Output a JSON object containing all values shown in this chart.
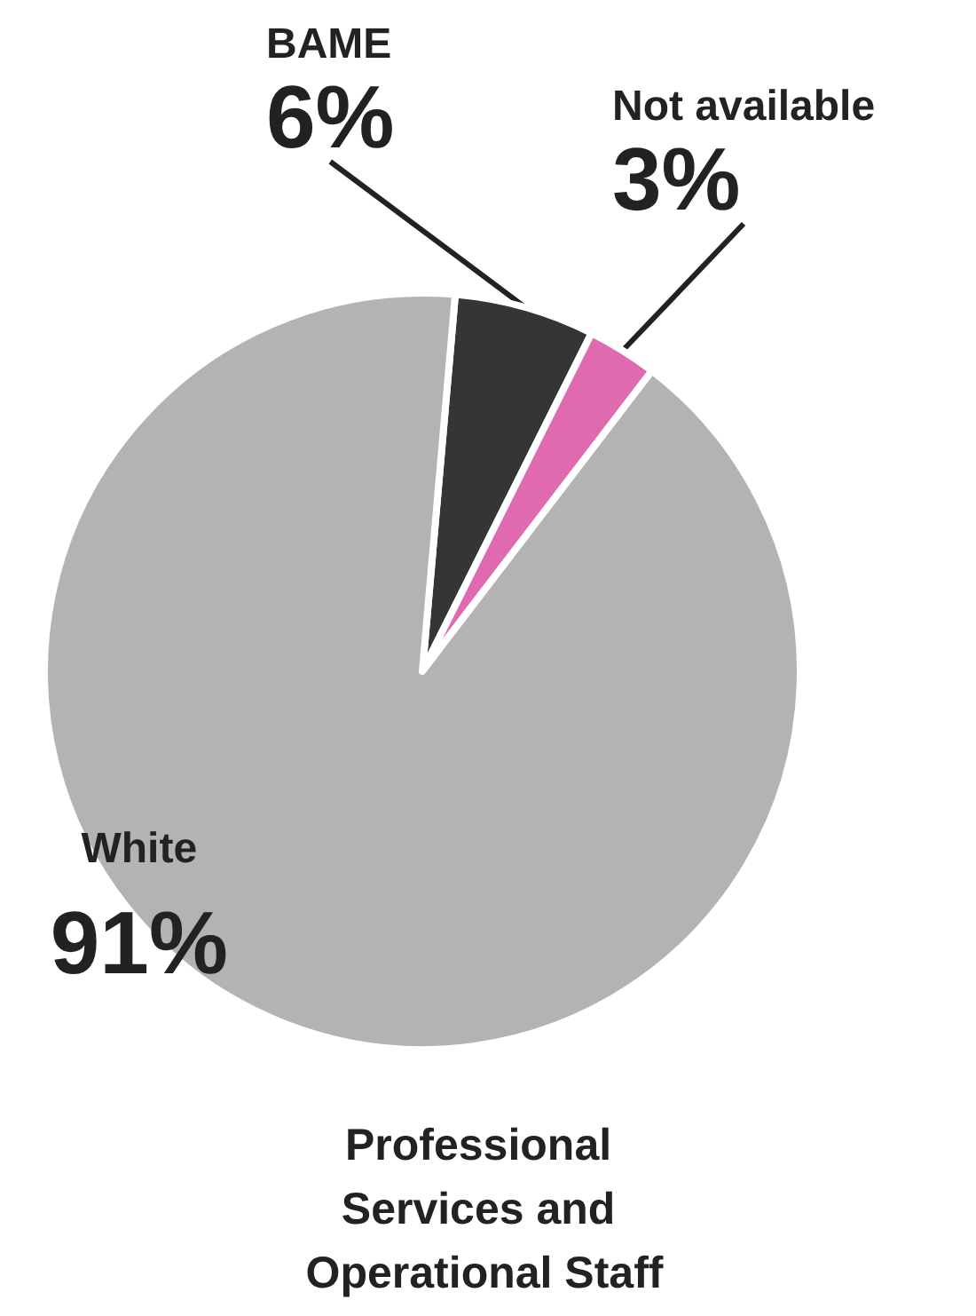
{
  "chart_data": {
    "type": "pie",
    "title": "Professional Services and Operational Staff",
    "categories": [
      "BAME",
      "Not available",
      "White"
    ],
    "values": [
      6,
      3,
      91
    ],
    "value_labels": [
      "6%",
      "3%",
      "91%"
    ],
    "colors": [
      "#333635",
      "#e06aaf",
      "#b3b3b3"
    ],
    "legend": false
  }
}
